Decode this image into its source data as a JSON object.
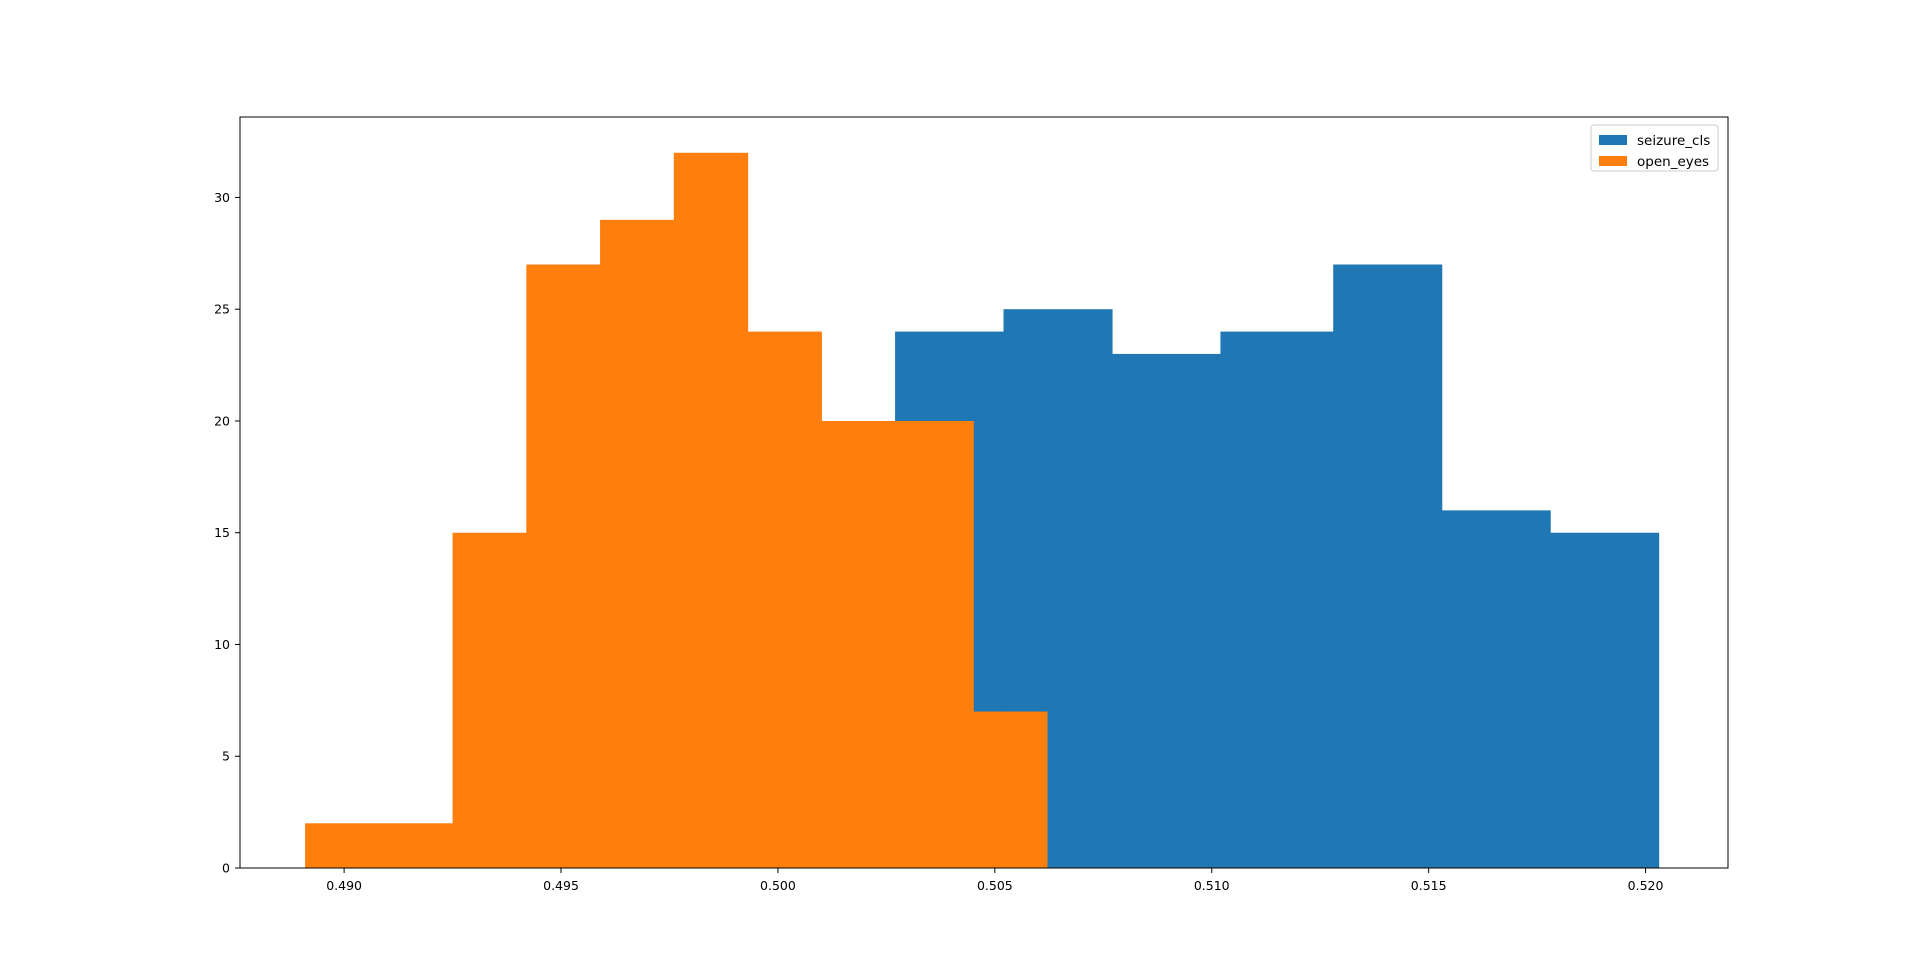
{
  "chart_data": {
    "type": "histogram",
    "title": "",
    "xlabel": "",
    "ylabel": "",
    "xlim": [
      0.4876,
      0.5219
    ],
    "ylim": [
      0,
      33.6
    ],
    "xticks": [
      0.49,
      0.495,
      0.5,
      0.505,
      0.51,
      0.515,
      0.52
    ],
    "xtick_labels": [
      "0.490",
      "0.495",
      "0.500",
      "0.505",
      "0.510",
      "0.515",
      "0.520"
    ],
    "yticks": [
      0,
      5,
      10,
      15,
      20,
      25,
      30
    ],
    "ytick_labels": [
      "0",
      "5",
      "10",
      "15",
      "20",
      "25",
      "30"
    ],
    "grid": false,
    "legend_position": "top-right",
    "series": [
      {
        "name": "seizure_cls",
        "color": "#1f77b4",
        "bin_edges": [
          0.5027,
          0.5052,
          0.5077,
          0.5102,
          0.5128,
          0.5153,
          0.5178,
          0.5203
        ],
        "counts": [
          24,
          25,
          23,
          24,
          27,
          16,
          15
        ]
      },
      {
        "name": "open_eyes",
        "color": "#ff7f0e",
        "bin_edges": [
          0.4891,
          0.4925,
          0.4942,
          0.4959,
          0.4976,
          0.4993,
          0.501,
          0.5027,
          0.5045,
          0.5062
        ],
        "counts": [
          2,
          15,
          27,
          29,
          32,
          24,
          20,
          20,
          7
        ]
      }
    ]
  }
}
